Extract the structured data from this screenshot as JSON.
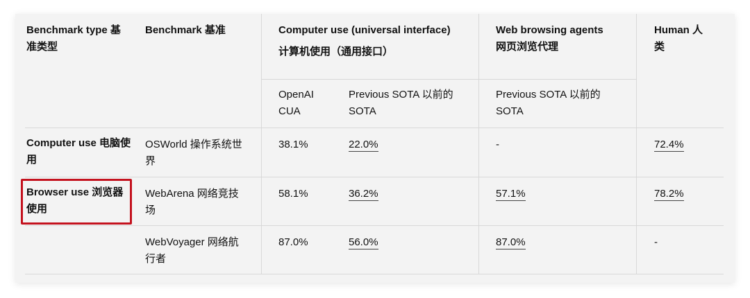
{
  "header": {
    "col1": "Benchmark type 基准类型",
    "col2": "Benchmark 基准",
    "col3": "Computer use (universal interface)",
    "col3_cn": "计算机使用（通用接口）",
    "col4": "Web browsing agents 网页浏览代理",
    "col5": "Human 人类",
    "sub_openai": "OpenAI CUA",
    "sub_prev_sota": "Previous SOTA 以前的SOTA",
    "sub_prev_sota_web": "Previous SOTA 以前的SOTA"
  },
  "rows": [
    {
      "type": "Computer use 电脑使用",
      "benchmark": "OSWorld 操作系统世界",
      "openai_cua": "38.1%",
      "prev_sota": "22.0%",
      "web_prev_sota": "-",
      "human": "72.4%"
    },
    {
      "type": "Browser use 浏览器使用",
      "benchmark": "WebArena 网络竞技场",
      "openai_cua": "58.1%",
      "prev_sota": "36.2%",
      "web_prev_sota": "57.1%",
      "human": "78.2%"
    },
    {
      "type": "",
      "benchmark": "WebVoyager 网络航行者",
      "openai_cua": "87.0%",
      "prev_sota": "56.0%",
      "web_prev_sota": "87.0%",
      "human": "-"
    }
  ],
  "colors": {
    "highlight_border": "#c4121e",
    "card_background": "#f3f3f3",
    "grid_line": "#d8d8d8"
  }
}
